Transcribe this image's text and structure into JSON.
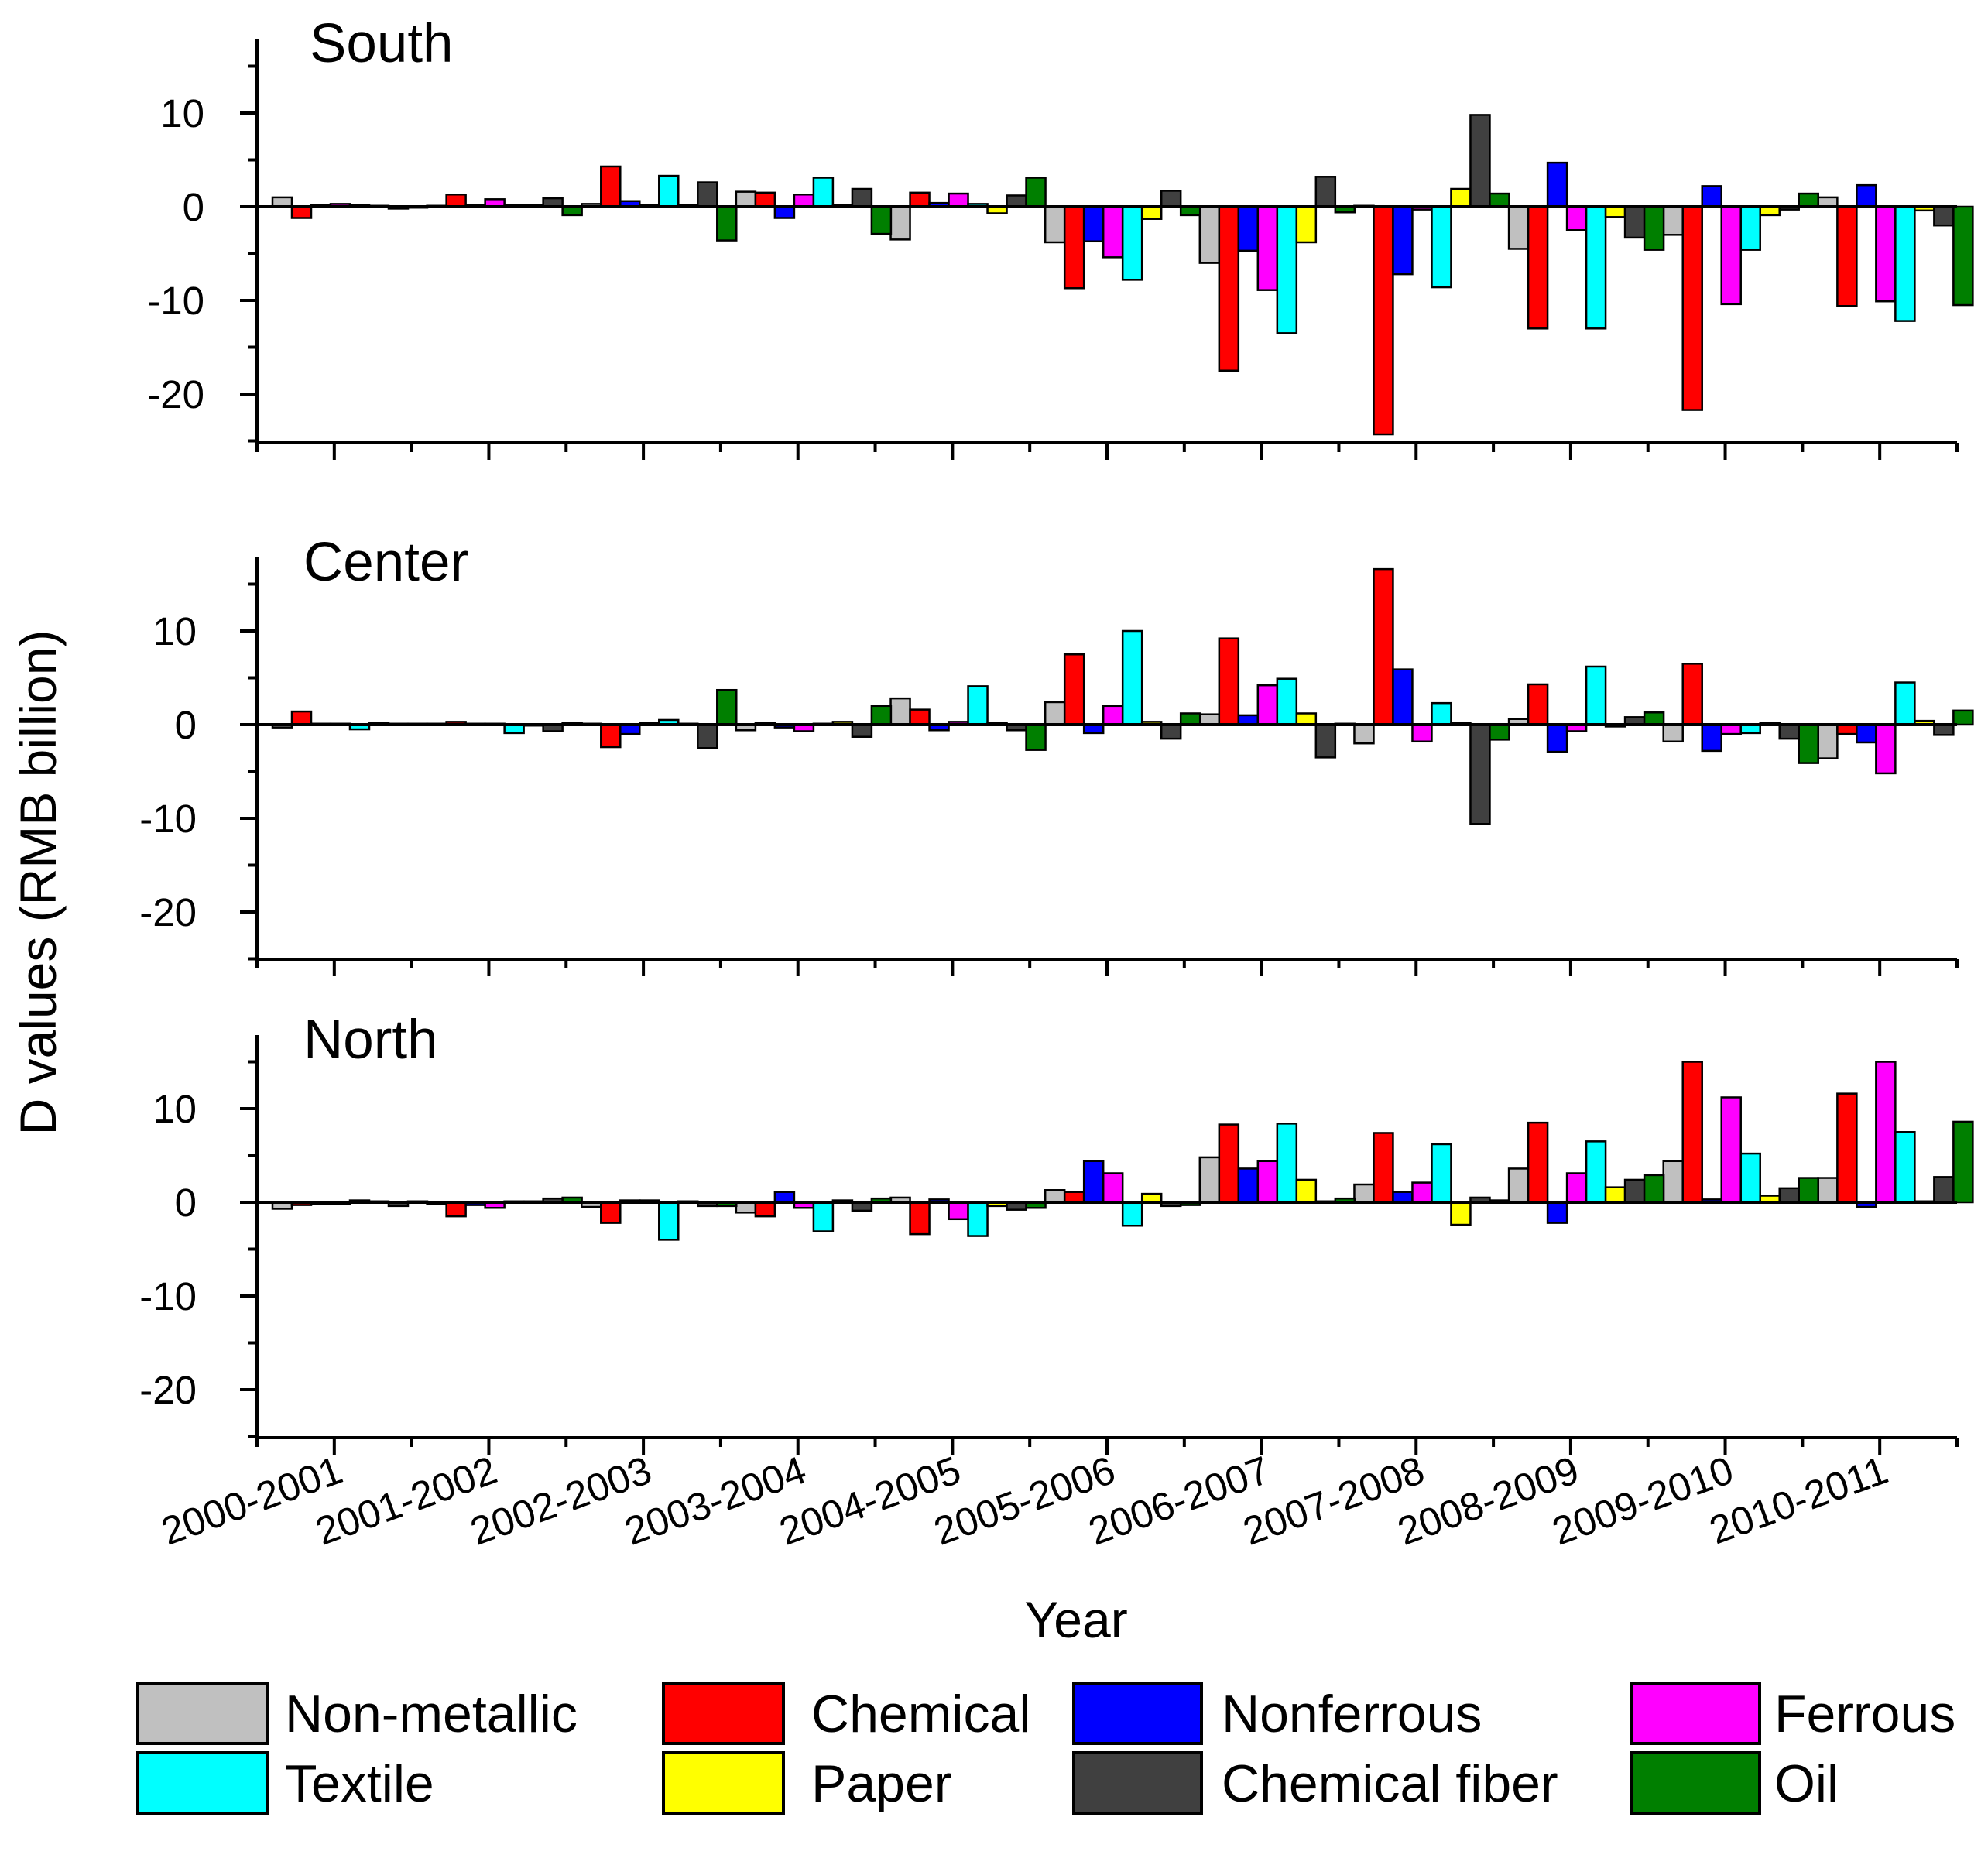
{
  "chart_data": {
    "type": "bar",
    "title": "",
    "xlabel": "Year",
    "ylabel": "D values (RMB billion)",
    "categories": [
      "2000-2001",
      "2001-2002",
      "2002-2003",
      "2003-2004",
      "2004-2005",
      "2005-2006",
      "2006-2007",
      "2007-2008",
      "2008-2009",
      "2009-2010",
      "2010-2011"
    ],
    "legend": [
      {
        "name": "Non-metallic",
        "color": "#c0c0c0"
      },
      {
        "name": "Chemical",
        "color": "#ff0000"
      },
      {
        "name": "Nonferrous",
        "color": "#0000ff"
      },
      {
        "name": "Ferrous",
        "color": "#ff00ff"
      },
      {
        "name": "Textile",
        "color": "#00ffff"
      },
      {
        "name": "Paper",
        "color": "#ffff00"
      },
      {
        "name": "Chemical fiber",
        "color": "#404040"
      },
      {
        "name": "Oil",
        "color": "#007f00"
      }
    ],
    "ytick_labels": [
      "10",
      "0",
      "-10",
      "-20"
    ],
    "panels": [
      {
        "name": "South",
        "ylim": [
          -25,
          18
        ],
        "series": [
          {
            "name": "Non-metallic",
            "values": [
              1.0,
              0.1,
              0.3,
              1.6,
              -3.5,
              -3.8,
              -6.0,
              0.1,
              -4.5,
              -3.0,
              1.0
            ]
          },
          {
            "name": "Chemical",
            "values": [
              -1.2,
              1.3,
              4.3,
              1.5,
              1.5,
              -8.7,
              -17.5,
              -24.3,
              -13.0,
              -21.7,
              -10.6
            ]
          },
          {
            "name": "Nonferrous",
            "values": [
              0.2,
              0.2,
              0.6,
              -1.2,
              0.4,
              -3.7,
              -4.7,
              -7.2,
              4.7,
              2.2,
              2.3
            ]
          },
          {
            "name": "Ferrous",
            "values": [
              0.3,
              0.8,
              0.2,
              1.3,
              1.4,
              -5.4,
              -8.9,
              -0.3,
              -2.5,
              -10.4,
              -10.1
            ]
          },
          {
            "name": "Textile",
            "values": [
              0.2,
              0.2,
              3.3,
              3.1,
              0.3,
              -7.8,
              -13.5,
              -8.6,
              -13.0,
              -4.6,
              -12.2
            ]
          },
          {
            "name": "Paper",
            "values": [
              0.1,
              0.2,
              0.2,
              0.2,
              -0.7,
              -1.3,
              -3.8,
              1.9,
              -1.1,
              -0.9,
              -0.4
            ]
          },
          {
            "name": "Chemical fiber",
            "values": [
              -0.2,
              0.9,
              2.6,
              1.9,
              1.2,
              1.7,
              3.2,
              9.8,
              -3.3,
              -0.3,
              -2.0
            ]
          },
          {
            "name": "Oil",
            "values": [
              -0.1,
              -0.9,
              -3.6,
              -2.9,
              3.1,
              -0.9,
              -0.6,
              1.4,
              -4.6,
              1.4,
              -10.5
            ]
          }
        ]
      },
      {
        "name": "Center",
        "ylim": [
          -25,
          18
        ],
        "series": [
          {
            "name": "Non-metallic",
            "values": [
              -0.3,
              0.1,
              0.1,
              -0.6,
              2.8,
              2.4,
              1.1,
              -2.0,
              0.6,
              -1.8,
              -3.6
            ]
          },
          {
            "name": "Chemical",
            "values": [
              1.4,
              0.3,
              -2.4,
              0.2,
              1.6,
              7.5,
              9.2,
              16.6,
              4.3,
              6.5,
              -1.0
            ]
          },
          {
            "name": "Nonferrous",
            "values": [
              0.1,
              0.1,
              -1.0,
              -0.3,
              -0.6,
              -0.9,
              1.0,
              5.9,
              -2.9,
              -2.8,
              -1.9
            ]
          },
          {
            "name": "Ferrous",
            "values": [
              0.1,
              0.1,
              0.2,
              -0.7,
              0.3,
              2.0,
              4.2,
              -1.8,
              -0.7,
              -1.0,
              -5.2
            ]
          },
          {
            "name": "Textile",
            "values": [
              -0.5,
              -0.9,
              0.5,
              0.1,
              4.1,
              10.0,
              4.9,
              2.3,
              6.2,
              -0.9,
              4.5
            ]
          },
          {
            "name": "Paper",
            "values": [
              0.2,
              -0.1,
              0.1,
              0.3,
              0.2,
              0.3,
              1.2,
              0.2,
              -0.2,
              0.2,
              0.4
            ]
          },
          {
            "name": "Chemical fiber",
            "values": [
              0.1,
              -0.7,
              -2.5,
              -1.3,
              -0.6,
              -1.5,
              -3.5,
              -10.6,
              0.8,
              -1.5,
              -1.1
            ]
          },
          {
            "name": "Oil",
            "values": [
              0.1,
              0.2,
              3.7,
              2.0,
              -2.7,
              1.2,
              0.1,
              -1.6,
              1.3,
              -4.1,
              1.5
            ]
          }
        ]
      },
      {
        "name": "North",
        "ylim": [
          -25,
          18
        ],
        "series": [
          {
            "name": "Non-metallic",
            "values": [
              -0.7,
              -0.2,
              -0.5,
              -1.1,
              0.5,
              1.3,
              4.8,
              1.9,
              3.6,
              4.4,
              2.6
            ]
          },
          {
            "name": "Chemical",
            "values": [
              -0.3,
              -1.5,
              -2.2,
              -1.5,
              -3.4,
              1.1,
              8.3,
              7.4,
              8.5,
              15.0,
              11.6
            ]
          },
          {
            "name": "Nonferrous",
            "values": [
              -0.2,
              -0.3,
              0.2,
              1.1,
              0.3,
              4.4,
              3.6,
              1.1,
              -2.2,
              0.3,
              -0.5
            ]
          },
          {
            "name": "Ferrous",
            "values": [
              -0.2,
              -0.6,
              0.2,
              -0.6,
              -1.8,
              3.1,
              4.4,
              2.1,
              3.1,
              11.2,
              15.0
            ]
          },
          {
            "name": "Textile",
            "values": [
              0.2,
              0.1,
              -4.0,
              -3.1,
              -3.6,
              -2.5,
              8.4,
              6.2,
              6.5,
              5.2,
              7.5
            ]
          },
          {
            "name": "Paper",
            "values": [
              0.1,
              0.1,
              0.1,
              0.2,
              -0.4,
              0.9,
              2.4,
              -2.4,
              1.6,
              0.7,
              0.1
            ]
          },
          {
            "name": "Chemical fiber",
            "values": [
              -0.4,
              0.4,
              -0.4,
              -0.9,
              -0.8,
              -0.4,
              0.1,
              0.5,
              2.4,
              1.5,
              2.7
            ]
          },
          {
            "name": "Oil",
            "values": [
              0.1,
              0.5,
              -0.4,
              0.4,
              -0.6,
              -0.3,
              0.4,
              0.2,
              2.9,
              2.6,
              8.6
            ]
          }
        ]
      }
    ]
  }
}
